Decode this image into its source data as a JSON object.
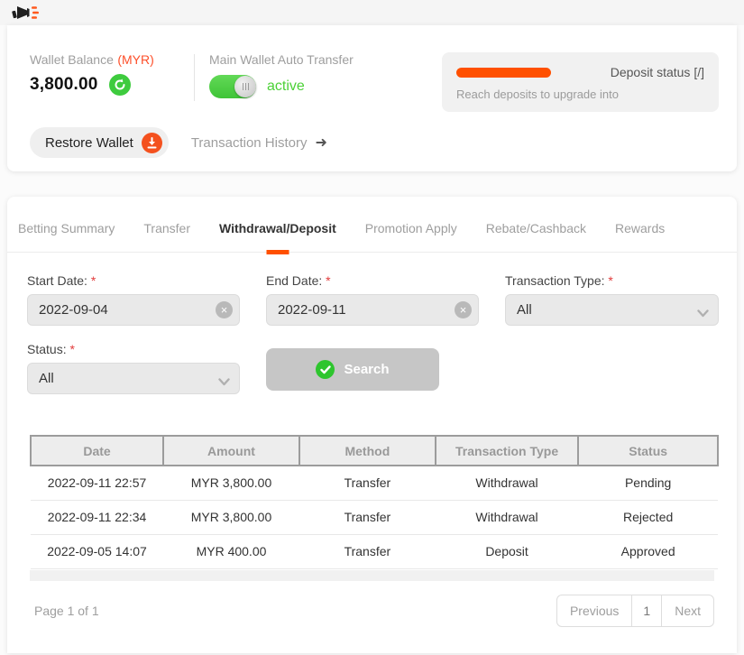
{
  "wallet": {
    "balance_label": "Wallet Balance",
    "currency_label": "(MYR)",
    "balance_value": "3,800.00",
    "auto_transfer_label": "Main Wallet Auto Transfer",
    "auto_transfer_status": "active",
    "deposit_status_label": "Deposit status [/]",
    "deposit_status_hint": "Reach deposits to upgrade into",
    "restore_button": "Restore Wallet",
    "history_link": "Transaction History"
  },
  "tabs": [
    {
      "label": "Betting Summary",
      "active": false
    },
    {
      "label": "Transfer",
      "active": false
    },
    {
      "label": "Withdrawal/Deposit",
      "active": true
    },
    {
      "label": "Promotion Apply",
      "active": false
    },
    {
      "label": "Rebate/Cashback",
      "active": false
    },
    {
      "label": "Rewards",
      "active": false
    }
  ],
  "filters": {
    "start_date": {
      "label": "Start Date:",
      "required": "*",
      "value": "2022-09-04"
    },
    "end_date": {
      "label": "End Date:",
      "required": "*",
      "value": "2022-09-11"
    },
    "transaction_type": {
      "label": "Transaction Type:",
      "required": "*",
      "value": "All"
    },
    "status": {
      "label": "Status:",
      "required": "*",
      "value": "All"
    },
    "search_label": "Search"
  },
  "table": {
    "headers": [
      "Date",
      "Amount",
      "Method",
      "Transaction Type",
      "Status"
    ],
    "rows": [
      [
        "2022-09-11 22:57",
        "MYR 3,800.00",
        "Transfer",
        "Withdrawal",
        "Pending"
      ],
      [
        "2022-09-11 22:34",
        "MYR 3,800.00",
        "Transfer",
        "Withdrawal",
        "Rejected"
      ],
      [
        "2022-09-05 14:07",
        "MYR 400.00",
        "Transfer",
        "Deposit",
        "Approved"
      ]
    ]
  },
  "pagination": {
    "page_info": "Page 1 of 1",
    "previous": "Previous",
    "current": "1",
    "next": "Next"
  },
  "icons": {
    "clear": "×",
    "arrow_right": "➜"
  },
  "colors": {
    "accent_orange": "#ff5000",
    "green": "#3ecb3e",
    "active_green": "#4cd137",
    "restore_orange": "#f4511e"
  }
}
